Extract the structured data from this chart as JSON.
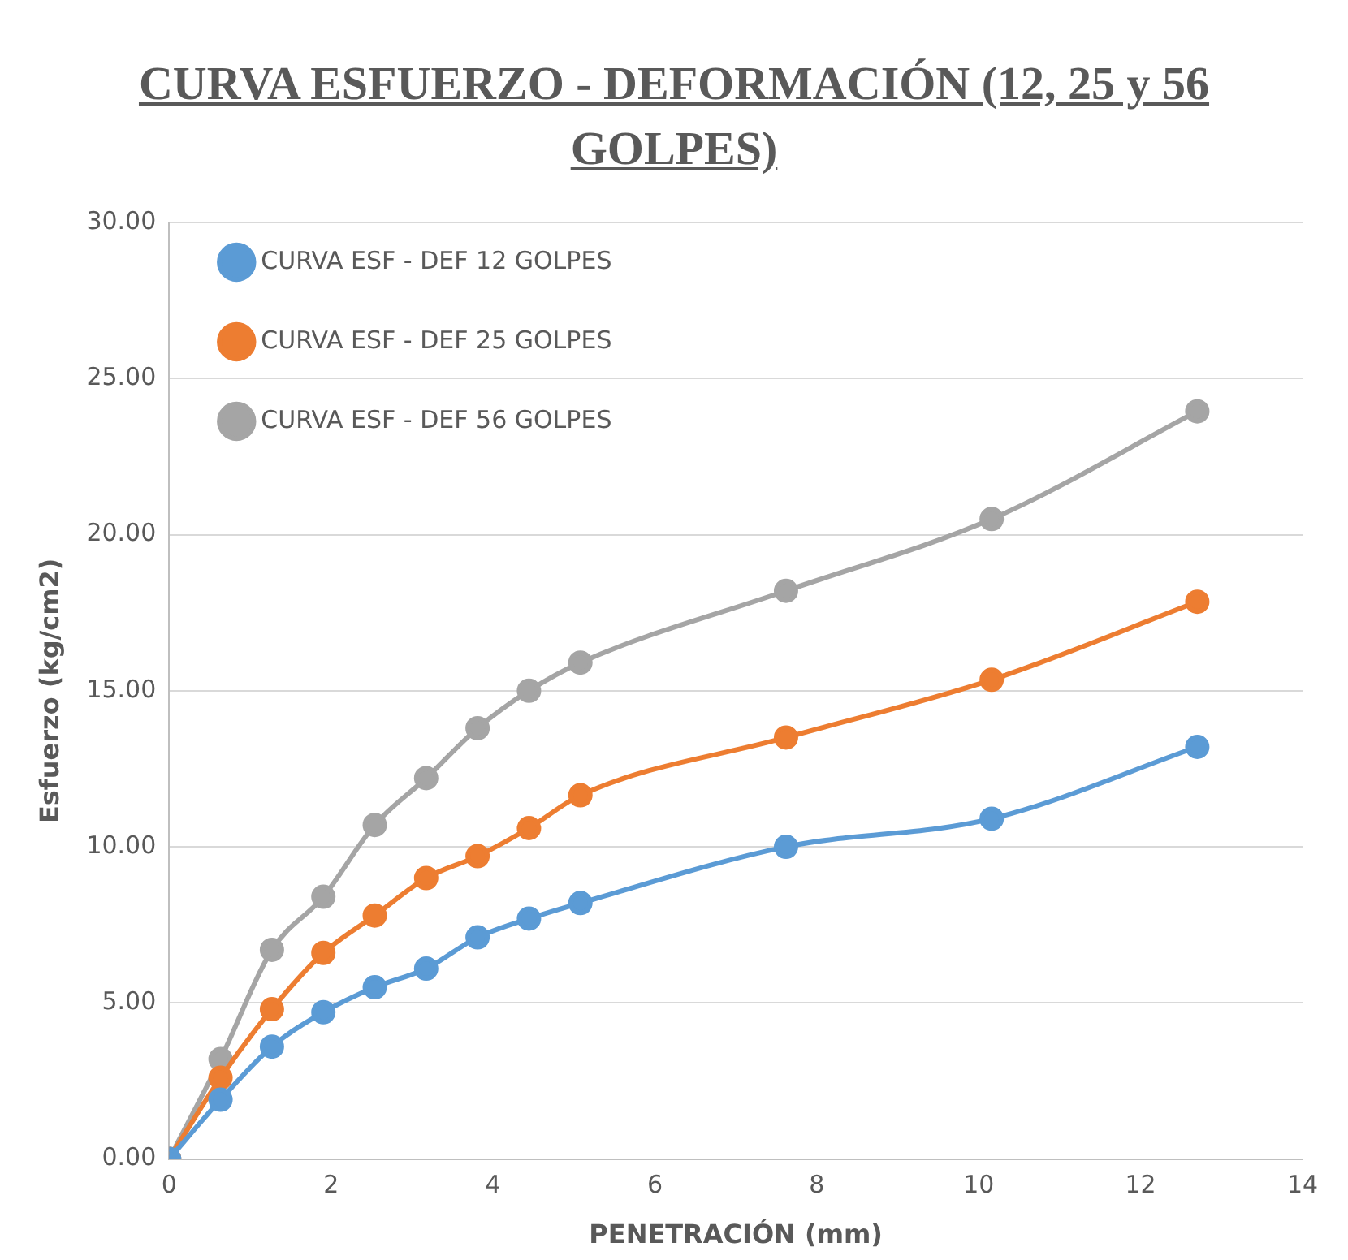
{
  "chart_data": {
    "type": "line",
    "title": "CURVA ESFUERZO - DEFORMACIÓN (12, 25 y 56 GOLPES)",
    "xlabel": "PENETRACIÓN (mm)",
    "ylabel": "Esfuerzo (kg/cm2)",
    "x": [
      0,
      0.635,
      1.27,
      1.905,
      2.54,
      3.175,
      3.81,
      4.445,
      5.08,
      7.62,
      10.16,
      12.7
    ],
    "series": [
      {
        "name": "CURVA ESF - DEF 12 GOLPES",
        "color": "#5b9bd5",
        "values": [
          0,
          1.9,
          3.6,
          4.7,
          5.5,
          6.1,
          7.1,
          7.7,
          8.2,
          10.0,
          10.9,
          13.2
        ]
      },
      {
        "name": "CURVA ESF - DEF 25 GOLPES",
        "color": "#ed7d31",
        "values": [
          0,
          2.6,
          4.8,
          6.6,
          7.8,
          9.0,
          9.7,
          10.6,
          11.65,
          13.5,
          15.35,
          17.85
        ]
      },
      {
        "name": "CURVA ESF - DEF 56 GOLPES",
        "color": "#a5a5a5",
        "values": [
          0,
          3.2,
          6.7,
          8.4,
          10.7,
          12.2,
          13.8,
          15.0,
          15.9,
          18.2,
          20.5,
          23.95
        ]
      }
    ],
    "xlim": [
      0,
      14
    ],
    "xticks": [
      0,
      2,
      4,
      6,
      8,
      10,
      12,
      14
    ],
    "ylim": [
      0,
      30
    ],
    "yticks": [
      {
        "value": 0,
        "label": "0.00"
      },
      {
        "value": 5,
        "label": "5.00"
      },
      {
        "value": 10,
        "label": "10.00"
      },
      {
        "value": 15,
        "label": "15.00"
      },
      {
        "value": 20,
        "label": "20.00"
      },
      {
        "value": 25,
        "label": "25.00"
      },
      {
        "value": 30,
        "label": "30.00"
      }
    ],
    "grid": "y",
    "legend": "top left",
    "marker": "circle",
    "line_style": "solid"
  }
}
